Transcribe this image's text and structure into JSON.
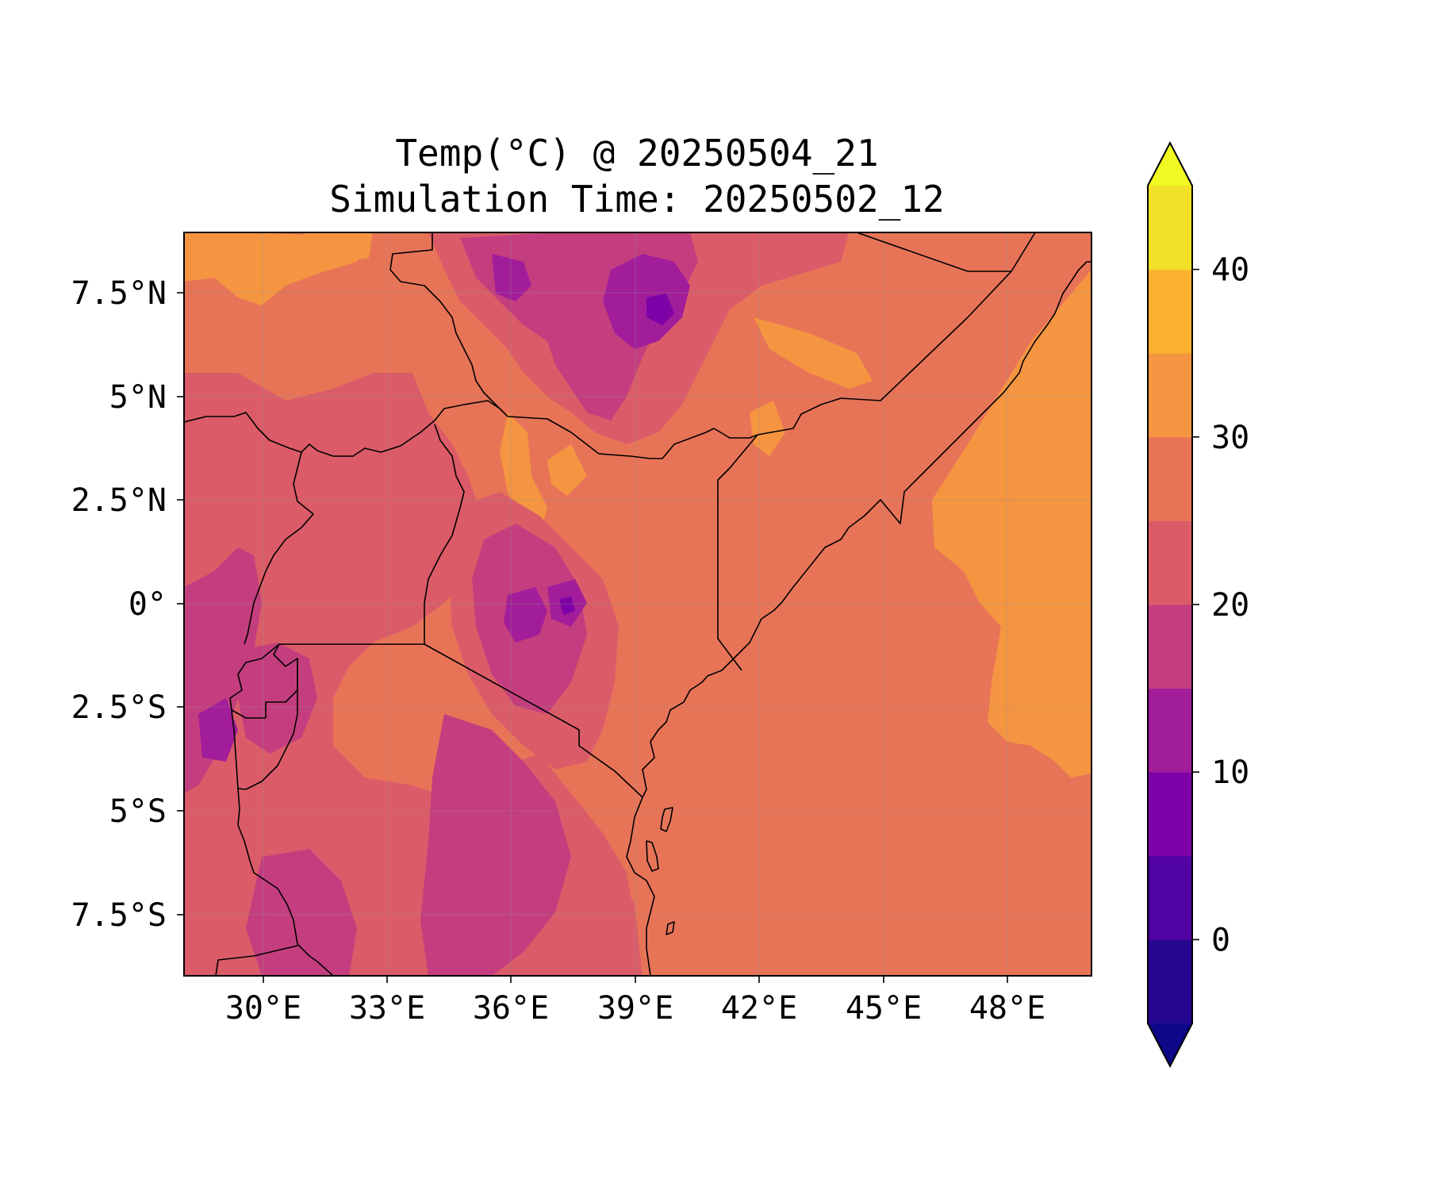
{
  "title": {
    "line1": "Temp(°C) @ 20250504_21",
    "line2": "Simulation Time: 20250502_12"
  },
  "map": {
    "type": "filled-contour map",
    "variable": "Temperature (°C)",
    "extent": {
      "lon": [
        27.5,
        49.5
      ],
      "lat": [
        -9.0,
        9.0
      ]
    },
    "x_ticks": [
      {
        "value": 30,
        "label": "30°E"
      },
      {
        "value": 33,
        "label": "33°E"
      },
      {
        "value": 36,
        "label": "36°E"
      },
      {
        "value": 39,
        "label": "39°E"
      },
      {
        "value": 42,
        "label": "42°E"
      },
      {
        "value": 45,
        "label": "45°E"
      },
      {
        "value": 48,
        "label": "48°E"
      }
    ],
    "y_ticks": [
      {
        "value": 7.5,
        "label": "7.5°N"
      },
      {
        "value": 5,
        "label": "5°N"
      },
      {
        "value": 2.5,
        "label": "2.5°N"
      },
      {
        "value": 0,
        "label": "0°"
      },
      {
        "value": -2.5,
        "label": "2.5°S"
      },
      {
        "value": -5,
        "label": "5°S"
      },
      {
        "value": -7.5,
        "label": "7.5°S"
      }
    ],
    "colormap": "plasma",
    "background_color": "#e87458"
  },
  "colorbar": {
    "levels": [
      -5,
      0,
      5,
      10,
      15,
      20,
      25,
      30,
      35,
      40,
      45
    ],
    "colors": [
      "#25078f",
      "#5102a3",
      "#7d03a8",
      "#a21d9a",
      "#c43e7f",
      "#db5c68",
      "#e87458",
      "#f59541",
      "#fbb12f",
      "#f1e028"
    ],
    "under_color": "#0d0887",
    "over_color": "#f0f921",
    "extend": "both",
    "tick_labels": [
      {
        "value": 0,
        "label": "0"
      },
      {
        "value": 10,
        "label": "10"
      },
      {
        "value": 20,
        "label": "20"
      },
      {
        "value": 30,
        "label": "30"
      },
      {
        "value": 40,
        "label": "40"
      }
    ]
  }
}
